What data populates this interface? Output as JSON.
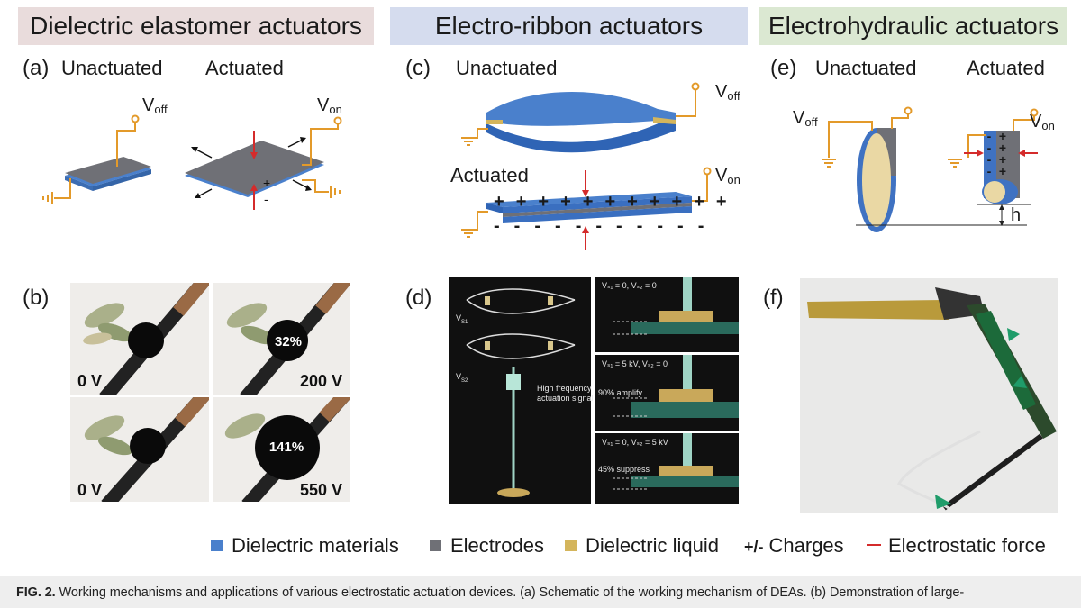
{
  "headers": {
    "dea": "Dielectric elastomer actuators",
    "electro_ribbon": "Electro-ribbon actuators",
    "electrohydraulic": "Electrohydraulic actuators"
  },
  "colors": {
    "dea_header_bg": "#e9dcdc",
    "er_header_bg": "#d5dcee",
    "eh_header_bg": "#dbe8d2",
    "dielectric": "#4a80cc",
    "electrode": "#6f7076",
    "liquid": "#d4b55c",
    "wire": "#e39a2a",
    "force": "#d42b2b",
    "arrow_green": "#1f9c6a"
  },
  "panel_a": {
    "label": "(a)",
    "unactuated": "Unactuated",
    "actuated": "Actuated",
    "v": "V",
    "off": "off",
    "on": "on",
    "plus": "+",
    "minus": "-"
  },
  "panel_b": {
    "label": "(b)",
    "photos": [
      {
        "voltage": "0 V",
        "strain": ""
      },
      {
        "voltage": "200 V",
        "strain": "32%"
      },
      {
        "voltage": "0 V",
        "strain": ""
      },
      {
        "voltage": "550 V",
        "strain": "141%"
      }
    ]
  },
  "panel_c": {
    "label": "(c)",
    "unactuated": "Unactuated",
    "actuated": "Actuated",
    "v": "V",
    "off": "off",
    "on": "on",
    "plus": "+",
    "minus": "-"
  },
  "panel_d": {
    "label": "(d)",
    "vs1": "V",
    "vs1_sub": "S1",
    "vs2": "V",
    "vs2_sub": "S2",
    "signal_line1": "High frequency",
    "signal_line2": "actuation signal",
    "sub_panels": [
      {
        "condition": "Vₛ₁ = 0, Vₛ₂ = 0",
        "note": ""
      },
      {
        "condition": "Vₛ₁ = 5 kV, Vₛ₂ = 0",
        "note": "90% amplify"
      },
      {
        "condition": "Vₛ₁ = 0, Vₛ₂ = 5 kV",
        "note": "45% suppress"
      }
    ]
  },
  "panel_e": {
    "label": "(e)",
    "unactuated": "Unactuated",
    "actuated": "Actuated",
    "v": "V",
    "off": "off",
    "on": "on",
    "plus": "+",
    "minus": "-",
    "h": "h"
  },
  "panel_f": {
    "label": "(f)"
  },
  "legend": {
    "dielectric": "Dielectric materials",
    "electrodes": "Electrodes",
    "liquid": "Dielectric liquid",
    "charges_symbol": "+/-",
    "charges": "Charges",
    "force": "Electrostatic force"
  },
  "caption": {
    "fig": "FIG. 2.",
    "text": "Working mechanisms and applications of various electrostatic actuation devices. (a) Schematic of the working mechanism of DEAs. (b) Demonstration of large-"
  }
}
